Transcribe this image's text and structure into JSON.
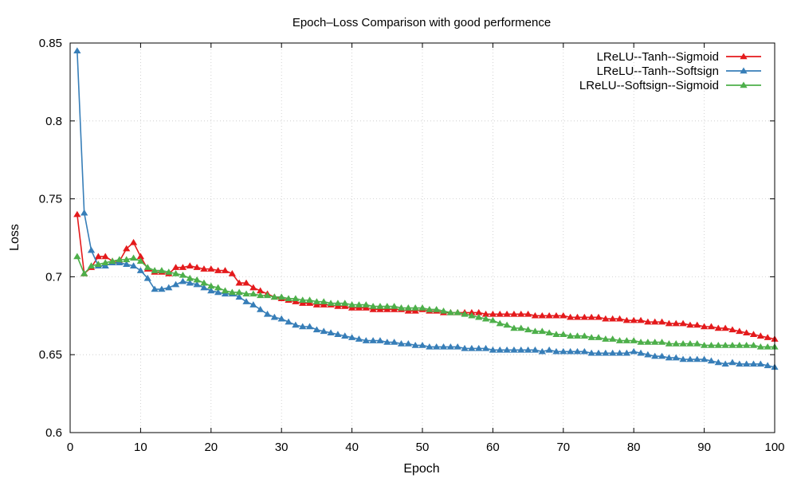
{
  "chart_data": {
    "type": "line",
    "title": "Epoch–Loss Comparison with good performence",
    "xlabel": "Epoch",
    "ylabel": "Loss",
    "xlim": [
      0,
      100
    ],
    "ylim": [
      0.6,
      0.85
    ],
    "xticks": [
      0,
      10,
      20,
      30,
      40,
      50,
      60,
      70,
      80,
      90,
      100
    ],
    "xtick_labels": [
      "0",
      "10",
      "20",
      "30",
      "40",
      "50",
      "60",
      "70",
      "80",
      "90",
      "100"
    ],
    "yticks": [
      0.6,
      0.65,
      0.7,
      0.75,
      0.8,
      0.85
    ],
    "ytick_labels": [
      "0.6",
      "0.65",
      "0.7",
      "0.75",
      "0.8",
      "0.85"
    ],
    "grid": true,
    "legend_position": "top-right",
    "series": [
      {
        "name": "LReLU--Tanh--Sigmoid",
        "color": "#e41a1c",
        "marker": "triangle",
        "x": [
          1,
          2,
          3,
          4,
          5,
          6,
          7,
          8,
          9,
          10,
          11,
          12,
          13,
          14,
          15,
          16,
          17,
          18,
          19,
          20,
          21,
          22,
          23,
          24,
          25,
          26,
          27,
          28,
          29,
          30,
          31,
          32,
          33,
          34,
          35,
          36,
          37,
          38,
          39,
          40,
          41,
          42,
          43,
          44,
          45,
          46,
          47,
          48,
          49,
          50,
          51,
          52,
          53,
          54,
          55,
          56,
          57,
          58,
          59,
          60,
          61,
          62,
          63,
          64,
          65,
          66,
          67,
          68,
          69,
          70,
          71,
          72,
          73,
          74,
          75,
          76,
          77,
          78,
          79,
          80,
          81,
          82,
          83,
          84,
          85,
          86,
          87,
          88,
          89,
          90,
          91,
          92,
          93,
          94,
          95,
          96,
          97,
          98,
          99,
          100
        ],
        "y": [
          0.74,
          0.702,
          0.706,
          0.713,
          0.713,
          0.71,
          0.71,
          0.718,
          0.722,
          0.713,
          0.705,
          0.703,
          0.703,
          0.702,
          0.706,
          0.706,
          0.707,
          0.706,
          0.705,
          0.705,
          0.704,
          0.704,
          0.702,
          0.696,
          0.696,
          0.693,
          0.691,
          0.689,
          0.687,
          0.686,
          0.685,
          0.684,
          0.683,
          0.683,
          0.682,
          0.682,
          0.682,
          0.681,
          0.681,
          0.68,
          0.68,
          0.68,
          0.679,
          0.679,
          0.679,
          0.679,
          0.679,
          0.678,
          0.678,
          0.679,
          0.678,
          0.678,
          0.677,
          0.677,
          0.677,
          0.677,
          0.677,
          0.677,
          0.676,
          0.676,
          0.676,
          0.676,
          0.676,
          0.676,
          0.676,
          0.675,
          0.675,
          0.675,
          0.675,
          0.675,
          0.674,
          0.674,
          0.674,
          0.674,
          0.674,
          0.673,
          0.673,
          0.673,
          0.672,
          0.672,
          0.672,
          0.671,
          0.671,
          0.671,
          0.67,
          0.67,
          0.67,
          0.669,
          0.669,
          0.668,
          0.668,
          0.667,
          0.667,
          0.666,
          0.665,
          0.664,
          0.663,
          0.662,
          0.661,
          0.66
        ]
      },
      {
        "name": "LReLU--Tanh--Softsign",
        "color": "#377eb8",
        "marker": "triangle",
        "x": [
          1,
          2,
          3,
          4,
          5,
          6,
          7,
          8,
          9,
          10,
          11,
          12,
          13,
          14,
          15,
          16,
          17,
          18,
          19,
          20,
          21,
          22,
          23,
          24,
          25,
          26,
          27,
          28,
          29,
          30,
          31,
          32,
          33,
          34,
          35,
          36,
          37,
          38,
          39,
          40,
          41,
          42,
          43,
          44,
          45,
          46,
          47,
          48,
          49,
          50,
          51,
          52,
          53,
          54,
          55,
          56,
          57,
          58,
          59,
          60,
          61,
          62,
          63,
          64,
          65,
          66,
          67,
          68,
          69,
          70,
          71,
          72,
          73,
          74,
          75,
          76,
          77,
          78,
          79,
          80,
          81,
          82,
          83,
          84,
          85,
          86,
          87,
          88,
          89,
          90,
          91,
          92,
          93,
          94,
          95,
          96,
          97,
          98,
          99,
          100
        ],
        "y": [
          0.845,
          0.741,
          0.717,
          0.707,
          0.707,
          0.709,
          0.709,
          0.708,
          0.707,
          0.704,
          0.699,
          0.692,
          0.692,
          0.693,
          0.695,
          0.697,
          0.696,
          0.695,
          0.693,
          0.691,
          0.69,
          0.689,
          0.689,
          0.687,
          0.684,
          0.682,
          0.679,
          0.676,
          0.674,
          0.673,
          0.671,
          0.669,
          0.668,
          0.668,
          0.666,
          0.665,
          0.664,
          0.663,
          0.662,
          0.661,
          0.66,
          0.659,
          0.659,
          0.659,
          0.658,
          0.658,
          0.657,
          0.657,
          0.656,
          0.656,
          0.655,
          0.655,
          0.655,
          0.655,
          0.655,
          0.654,
          0.654,
          0.654,
          0.654,
          0.653,
          0.653,
          0.653,
          0.653,
          0.653,
          0.653,
          0.653,
          0.652,
          0.653,
          0.652,
          0.652,
          0.652,
          0.652,
          0.652,
          0.651,
          0.651,
          0.651,
          0.651,
          0.651,
          0.651,
          0.652,
          0.651,
          0.65,
          0.649,
          0.649,
          0.648,
          0.648,
          0.647,
          0.647,
          0.647,
          0.647,
          0.646,
          0.645,
          0.644,
          0.645,
          0.644,
          0.644,
          0.644,
          0.644,
          0.643,
          0.642
        ]
      },
      {
        "name": "LReLU--Softsign--Sigmoid",
        "color": "#4daf4a",
        "marker": "triangle",
        "x": [
          1,
          2,
          3,
          4,
          5,
          6,
          7,
          8,
          9,
          10,
          11,
          12,
          13,
          14,
          15,
          16,
          17,
          18,
          19,
          20,
          21,
          22,
          23,
          24,
          25,
          26,
          27,
          28,
          29,
          30,
          31,
          32,
          33,
          34,
          35,
          36,
          37,
          38,
          39,
          40,
          41,
          42,
          43,
          44,
          45,
          46,
          47,
          48,
          49,
          50,
          51,
          52,
          53,
          54,
          55,
          56,
          57,
          58,
          59,
          60,
          61,
          62,
          63,
          64,
          65,
          66,
          67,
          68,
          69,
          70,
          71,
          72,
          73,
          74,
          75,
          76,
          77,
          78,
          79,
          80,
          81,
          82,
          83,
          84,
          85,
          86,
          87,
          88,
          89,
          90,
          91,
          92,
          93,
          94,
          95,
          96,
          97,
          98,
          99,
          100
        ],
        "y": [
          0.713,
          0.702,
          0.707,
          0.708,
          0.709,
          0.71,
          0.711,
          0.711,
          0.712,
          0.71,
          0.706,
          0.704,
          0.704,
          0.703,
          0.702,
          0.701,
          0.699,
          0.698,
          0.696,
          0.694,
          0.693,
          0.691,
          0.69,
          0.69,
          0.689,
          0.689,
          0.688,
          0.688,
          0.687,
          0.687,
          0.686,
          0.686,
          0.685,
          0.685,
          0.684,
          0.684,
          0.683,
          0.683,
          0.683,
          0.682,
          0.682,
          0.682,
          0.681,
          0.681,
          0.681,
          0.681,
          0.68,
          0.68,
          0.68,
          0.68,
          0.679,
          0.679,
          0.678,
          0.677,
          0.677,
          0.676,
          0.675,
          0.674,
          0.673,
          0.672,
          0.67,
          0.669,
          0.667,
          0.667,
          0.666,
          0.665,
          0.665,
          0.664,
          0.663,
          0.663,
          0.662,
          0.662,
          0.662,
          0.661,
          0.661,
          0.66,
          0.66,
          0.659,
          0.659,
          0.659,
          0.658,
          0.658,
          0.658,
          0.658,
          0.657,
          0.657,
          0.657,
          0.657,
          0.657,
          0.656,
          0.656,
          0.656,
          0.656,
          0.656,
          0.656,
          0.656,
          0.656,
          0.655,
          0.655,
          0.655
        ]
      }
    ]
  }
}
